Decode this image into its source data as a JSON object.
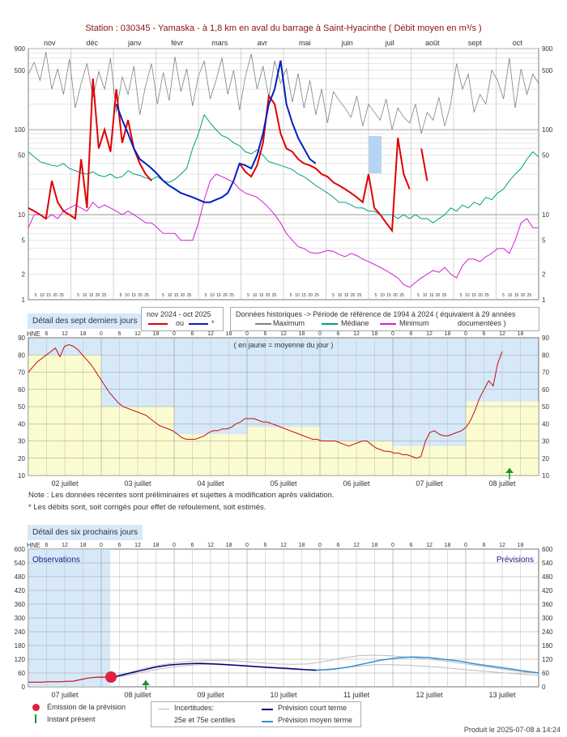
{
  "header": {
    "title": "Station : 030345      -  Yamaska - à 1,8 km en aval du barrage à Saint-Hyacinthe   ( Débit moyen en m³/s )"
  },
  "colors": {
    "title": "#8b1010",
    "current_year": "#e00000",
    "current_year_alt": "#0020c0",
    "maximum": "#808080",
    "median": "#00a080",
    "minimum": "#d020d0",
    "panel_blue": "#d7e9f8",
    "day_band_yellow": "#fbfbd0",
    "forecast_short": "#000080",
    "forecast_medium": "#3090d0",
    "emission_dot": "#e02040",
    "present_arrow": "#209030"
  },
  "chart_data": [
    {
      "id": "annual",
      "type": "line",
      "yscale": "log",
      "ylim": [
        1,
        900
      ],
      "yticks": [
        "1",
        "2",
        "5",
        "10",
        "50",
        "100",
        "500",
        "900"
      ],
      "ytick_values": [
        1,
        2,
        5,
        10,
        50,
        100,
        500,
        900
      ],
      "months": [
        "nov",
        "déc",
        "janv",
        "févr",
        "mars",
        "avr",
        "mai",
        "juin",
        "juil",
        "août",
        "sept",
        "oct"
      ],
      "day_tick_labels": [
        "5",
        "10",
        "15",
        "20",
        "25"
      ],
      "series": [
        {
          "name": "Maximum",
          "values": [
            450,
            620,
            380,
            820,
            300,
            520,
            260,
            680,
            180,
            350,
            600,
            240,
            480,
            300,
            700,
            160,
            420,
            260,
            560,
            150,
            330,
            600,
            200,
            470,
            220,
            720,
            280,
            520,
            190,
            430,
            640,
            230,
            380,
            700,
            260,
            500,
            170,
            420,
            780,
            300,
            560,
            240,
            650,
            350,
            520,
            210,
            460,
            180,
            380,
            150,
            300,
            120,
            280,
            220,
            180,
            140,
            250,
            110,
            200,
            160,
            130,
            230,
            100,
            180,
            140,
            120,
            200,
            90,
            160,
            130,
            240,
            110,
            200,
            600,
            300,
            450,
            160,
            260,
            200,
            500,
            380,
            230,
            700,
            180,
            520,
            260,
            450,
            350
          ]
        },
        {
          "name": "Médiane",
          "values": [
            55,
            48,
            42,
            40,
            38,
            37,
            40,
            35,
            33,
            31,
            30,
            32,
            29,
            28,
            30,
            27,
            28,
            33,
            30,
            29,
            27,
            26,
            28,
            25,
            24,
            26,
            30,
            35,
            60,
            90,
            150,
            120,
            100,
            85,
            80,
            70,
            65,
            55,
            52,
            58,
            50,
            42,
            40,
            38,
            36,
            34,
            30,
            28,
            25,
            22,
            20,
            18,
            16,
            14,
            14,
            13,
            12,
            12,
            11,
            11,
            10,
            10,
            10,
            9,
            10,
            9,
            10,
            9,
            9,
            8,
            9,
            10,
            12,
            11,
            13,
            12,
            14,
            13,
            16,
            15,
            18,
            20,
            25,
            30,
            35,
            45,
            55,
            48
          ]
        },
        {
          "name": "Minimum",
          "values": [
            7,
            10,
            10,
            9,
            10,
            9,
            11,
            12,
            13,
            12,
            11,
            14,
            12,
            13,
            12,
            11,
            10,
            11,
            10,
            9,
            8,
            8,
            7,
            6,
            6,
            6,
            5,
            5,
            5,
            8,
            15,
            25,
            30,
            28,
            26,
            24,
            20,
            18,
            17,
            16,
            14,
            12,
            10,
            8,
            6,
            5,
            4.2,
            4,
            3.6,
            3.5,
            3.6,
            3.8,
            3.7,
            3.4,
            3.2,
            3.5,
            3.3,
            3,
            2.8,
            2.6,
            2.4,
            2.2,
            2,
            1.8,
            1.5,
            1.4,
            1.6,
            1.8,
            2,
            2.2,
            2.1,
            2.4,
            2,
            1.8,
            2.5,
            3,
            3,
            2.8,
            3.2,
            3.5,
            4,
            4,
            3.5,
            5,
            8,
            9,
            7,
            7
          ]
        },
        {
          "name": "nov 2024 - oct 2025",
          "values": [
            12,
            11,
            10,
            9,
            25,
            14,
            11,
            10,
            9,
            45,
            12,
            400,
            60,
            100,
            55,
            300,
            70,
            130,
            60,
            40,
            30,
            25,
            null,
            null,
            null,
            null,
            null,
            null,
            null,
            null,
            null,
            null,
            null,
            null,
            null,
            null,
            40,
            32,
            28,
            38,
            70,
            250,
            200,
            90,
            60,
            55,
            45,
            40,
            38,
            35,
            30,
            28,
            24,
            22,
            20,
            18,
            16,
            14,
            30,
            12,
            10,
            8,
            6.5,
            80,
            30,
            20,
            null,
            60,
            25,
            null,
            null,
            null,
            null,
            null,
            null,
            null,
            null,
            null,
            null,
            null,
            null,
            null,
            null,
            null,
            null,
            null,
            null,
            null
          ]
        },
        {
          "name": "ou *",
          "values": [
            null,
            null,
            null,
            null,
            null,
            null,
            null,
            null,
            null,
            null,
            null,
            null,
            null,
            null,
            null,
            200,
            130,
            90,
            60,
            45,
            40,
            35,
            30,
            25,
            22,
            20,
            18,
            17,
            16,
            15,
            14,
            14,
            15,
            16,
            18,
            25,
            40,
            38,
            35,
            50,
            90,
            200,
            300,
            650,
            200,
            120,
            80,
            60,
            45,
            40,
            null,
            null,
            null,
            null,
            null,
            null,
            null,
            null,
            null,
            null,
            null,
            null,
            null,
            null,
            null,
            null,
            null,
            null,
            null,
            null,
            null,
            null,
            null,
            null,
            null,
            null,
            null,
            null,
            null,
            null,
            null,
            null,
            null,
            null,
            null,
            null,
            null,
            null
          ]
        }
      ]
    },
    {
      "id": "seven_days",
      "type": "line",
      "title": "( en jaune = moyenne du jour )",
      "ylim": [
        10,
        90
      ],
      "yticks": [
        10,
        20,
        30,
        40,
        50,
        60,
        70,
        80,
        90
      ],
      "hne_label": "HNE",
      "hour_labels": [
        "6",
        "12",
        "18",
        "0"
      ],
      "day_labels": [
        "02 juillet",
        "03 juillet",
        "04 juillet",
        "05 juillet",
        "06 juillet",
        "07 juillet",
        "08 juillet"
      ],
      "daily_means": [
        80,
        50,
        34,
        38,
        30,
        27,
        53
      ],
      "series": [
        {
          "name": "Débit",
          "values": [
            70,
            73,
            76,
            78,
            80,
            82,
            84,
            79,
            85,
            86,
            85,
            83,
            80,
            77,
            74,
            70,
            66,
            62,
            58,
            55,
            52,
            50,
            49,
            48,
            47,
            46,
            45,
            43,
            41,
            39,
            38,
            37,
            36,
            34,
            32,
            31,
            31,
            31,
            32,
            33,
            35,
            36,
            36,
            37,
            37,
            38,
            40,
            41,
            43,
            43,
            43,
            42,
            41,
            41,
            40,
            39,
            38,
            37,
            36,
            35,
            34,
            33,
            32,
            31,
            31,
            30,
            30,
            30,
            30,
            29,
            28,
            27,
            28,
            29,
            30,
            30,
            28,
            26,
            25,
            24,
            24,
            23,
            23,
            22,
            22,
            21,
            20,
            21,
            30,
            35,
            36,
            34,
            33,
            33,
            34,
            35,
            36,
            38,
            42,
            48,
            55,
            60,
            65,
            62,
            75,
            82
          ]
        }
      ]
    },
    {
      "id": "six_days",
      "type": "line",
      "title_left": "Observations",
      "title_right": "Prévisions",
      "ylim": [
        0,
        600
      ],
      "yticks": [
        0,
        60,
        120,
        180,
        240,
        300,
        360,
        420,
        480,
        540,
        600
      ],
      "hne_label": "HNE",
      "hour_labels": [
        "6",
        "12",
        "18",
        "0"
      ],
      "day_labels": [
        "07 juillet",
        "08 juillet",
        "09 juillet",
        "10 juillet",
        "11 juillet",
        "12 juillet",
        "13 juillet"
      ],
      "series": [
        {
          "name": "Observé",
          "values": [
            20,
            20,
            20,
            22,
            22,
            22,
            24,
            24,
            30,
            36,
            40,
            42,
            42,
            42
          ]
        },
        {
          "name": "Prévision court terme",
          "values": [
            40,
            55,
            70,
            85,
            95,
            100,
            102,
            100,
            96,
            92,
            88,
            84,
            80,
            76,
            72
          ]
        },
        {
          "name": "Prévision moyen terme",
          "values": [
            72,
            76,
            85,
            100,
            115,
            125,
            130,
            128,
            120,
            112,
            100,
            90,
            80,
            70,
            60
          ]
        },
        {
          "name": "25e et 75e centiles (haut)",
          "values": [
            42,
            60,
            80,
            95,
            105,
            112,
            115,
            115,
            110,
            105,
            100,
            98,
            100,
            110,
            125,
            135,
            138,
            135,
            130,
            122,
            115,
            105,
            95,
            85,
            75,
            65,
            60
          ]
        },
        {
          "name": "25e et 75e centiles (bas)",
          "values": [
            38,
            50,
            65,
            78,
            88,
            95,
            98,
            95,
            90,
            85,
            80,
            76,
            74,
            76,
            82,
            90,
            96,
            96,
            94,
            90,
            85,
            78,
            72,
            66,
            60,
            55,
            50
          ]
        }
      ]
    }
  ],
  "panels": {
    "seven_days_tab": "Détail des sept derniers jours",
    "six_days_tab": "Détail des six prochains jours"
  },
  "legend_current": {
    "title": "nov 2024 - oct 2025",
    "line1": "ou",
    "line2": "*"
  },
  "legend_historic": {
    "title": "Données historiques -> Période de référence  de 1994 à 2024   ( équivalent à 29 années",
    "maximum": "Maximum",
    "median": "Médiane",
    "minimum": "Minimum",
    "documented": "documentées )"
  },
  "notes": {
    "note1": "Note : Les données récentes sont préliminaires et sujettes à modification après validation.",
    "note2": "* Les débits sont, soit corrigés pour effet de refoulement, soit estimés."
  },
  "legend_forecast": {
    "emission": "Émission de la prévision",
    "present": "Instant présent",
    "uncertainties": "Incertitudes:",
    "centiles": "25e et 75e centiles",
    "short_term": "Prévision court terme",
    "medium_term": "Prévision moyen terme"
  },
  "footer": {
    "produced": "Produit le 2025-07-08 à 14:24"
  }
}
